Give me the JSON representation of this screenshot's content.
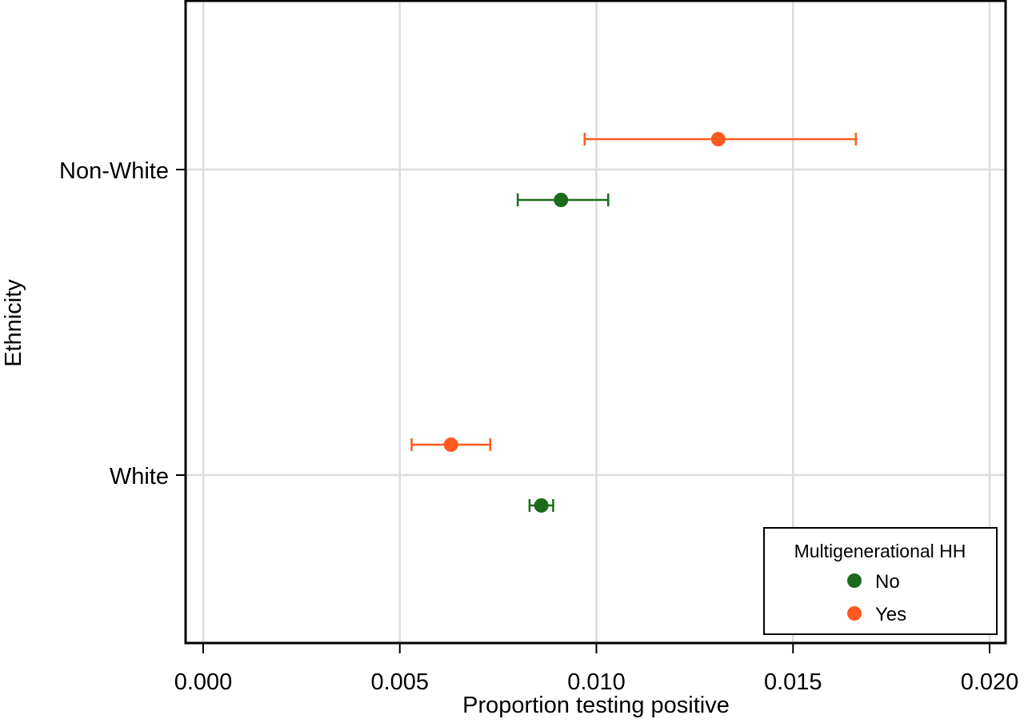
{
  "chart_data": {
    "type": "scatter",
    "subtype": "dot-with-error-bars",
    "orientation": "horizontal",
    "xlabel": "Proportion testing positive",
    "ylabel": "Ethnicity",
    "xlim": [
      0.0,
      0.02
    ],
    "x_ticks": [
      "0.000",
      "0.005",
      "0.010",
      "0.015",
      "0.020"
    ],
    "x_tick_values": [
      0.0,
      0.005,
      0.01,
      0.015,
      0.02
    ],
    "categories": [
      "Non-White",
      "White"
    ],
    "grid": true,
    "legend": {
      "title": "Multigenerational HH",
      "position": "bottom-right"
    },
    "series": [
      {
        "name": "No",
        "color": "#1b6b1b",
        "points": [
          {
            "category": "Non-White",
            "value": 0.0091,
            "lower": 0.008,
            "upper": 0.0103
          },
          {
            "category": "White",
            "value": 0.0086,
            "lower": 0.0083,
            "upper": 0.0089
          }
        ]
      },
      {
        "name": "Yes",
        "color": "#ff5a1f",
        "points": [
          {
            "category": "Non-White",
            "value": 0.0131,
            "lower": 0.0097,
            "upper": 0.0166
          },
          {
            "category": "White",
            "value": 0.0063,
            "lower": 0.0053,
            "upper": 0.0073
          }
        ]
      }
    ]
  }
}
